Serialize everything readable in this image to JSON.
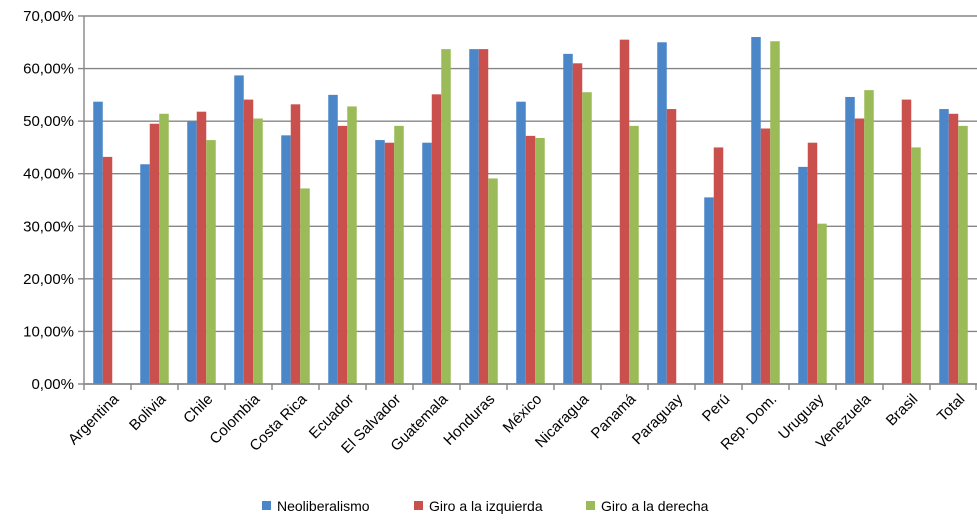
{
  "chart_data": {
    "type": "bar",
    "title": "",
    "xlabel": "",
    "ylabel": "",
    "ylim": [
      0,
      70
    ],
    "yticks": [
      "0,00%",
      "10,00%",
      "20,00%",
      "30,00%",
      "40,00%",
      "50,00%",
      "60,00%",
      "70,00%"
    ],
    "grid": true,
    "legend_position": "bottom",
    "categories": [
      "Argentina",
      "Bolivia",
      "Chile",
      "Colombia",
      "Costa Rica",
      "Ecuador",
      "El Salvador",
      "Guatemala",
      "Honduras",
      "México",
      "Nicaragua",
      "Panamá",
      "Paraguay",
      "Perú",
      "Rep. Dom.",
      "Uruguay",
      "Venezuela",
      "Brasil",
      "Total"
    ],
    "series": [
      {
        "name": "Neoliberalismo",
        "color": "#4a86c8",
        "values": [
          53.7,
          41.8,
          50.0,
          58.7,
          47.3,
          55.0,
          46.4,
          45.9,
          63.7,
          53.7,
          62.8,
          null,
          65.0,
          35.5,
          66.0,
          41.3,
          54.6,
          null,
          52.3
        ]
      },
      {
        "name": "Giro a la izquierda",
        "color": "#c9504d",
        "values": [
          43.2,
          49.5,
          51.8,
          54.1,
          53.2,
          49.1,
          45.9,
          55.1,
          63.7,
          47.2,
          61.0,
          65.5,
          52.3,
          45.0,
          48.6,
          45.9,
          50.5,
          54.1,
          51.4
        ]
      },
      {
        "name": "Giro a la derecha",
        "color": "#9bbb59",
        "values": [
          null,
          51.4,
          46.4,
          50.5,
          37.2,
          52.8,
          49.1,
          63.7,
          39.1,
          46.8,
          55.5,
          49.1,
          null,
          null,
          65.2,
          30.5,
          55.9,
          45.0,
          49.1
        ]
      }
    ]
  }
}
